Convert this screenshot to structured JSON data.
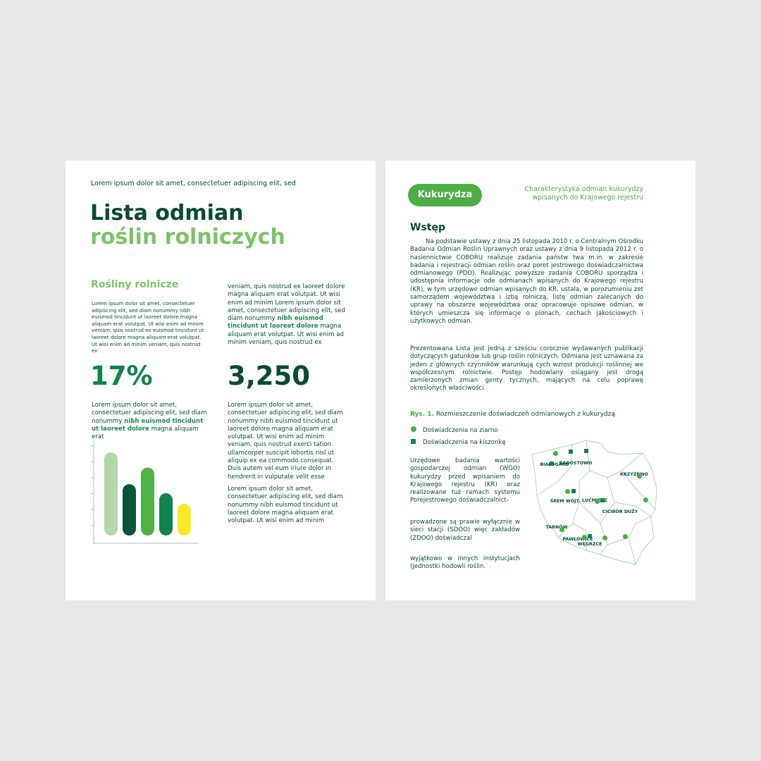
{
  "left_page": {
    "header": "Lorem ipsum dolor sit amet, consectetuer adipiscing elit, sed",
    "title_line1": "Lista odmian",
    "title_line2": "roślin rolniczych",
    "section_title": "Rośliny rolnicze",
    "small_text": "Lorem ipsum dolor sit amet, consectetuer adipiscing elit, sed diam nonummy nibh euismod tincidunt ut laoreet dolore magna aliquam erat volutpat. Ut wisi enim ad minim veniam, quis nostrud ex euismod tincidunt ut laoreet dolore magna aliquam erat volutpat. Ut wisi enim ad minim veniam, quis nostrud ex",
    "col2_top_a": "veniam, quis nostrud ex laoreet dolore magna aliquam erat volutpat. Ut wisi enim ad minim Lorem ipsum dolor sit amet, consectetuer adipiscing elit, sed diam nonummy ",
    "col2_top_hl": "nibh euismod tincidunt ut laoreet dolore",
    "col2_top_b": " magna aliquam erat volutpat. Ut wisi enim ad minim veniam, quis nostrud ex",
    "stat1": "17%",
    "stat2": "3,250",
    "stat1_text_a": "Lorem ipsum dolor sit amet, consectetuer adipiscing elit, sed diam nonummy ",
    "stat1_text_hl": "nibh euismod tincidunt ut laoreet dolore",
    "stat1_text_b": " magna aliquam erat",
    "col2_para1": "Lorem ipsum dolor sit amet, consectetuer adipiscing elit, sed diam nonummy nibh euismod tincidunt ut laoreet dolore magna aliquam erat volutpat. Ut wisi enim ad minim veniam, quis nostrud exerci tation ullamcorper suscipit lobortis nisl ut aliquip ex ea commodo consequat. Duis autem vel eum iriure dolor in hendrerit in vulputate velit esse",
    "col2_para2": "Lorem ipsum dolor sit amet, consectetuer adipiscing elit, sed diam nonummy nibh euismod tincidunt ut laoreet dolore magna aliquam erat volutpat. Ut wisi enim ad minim"
  },
  "chart_data": {
    "type": "bar",
    "values": [
      5.5,
      3.4,
      4.5,
      2.8,
      2.1
    ],
    "colors": [
      "#b3d6ab",
      "#06553a",
      "#52b04a",
      "#11834f",
      "#fde92c"
    ],
    "ylim": [
      0,
      6.3
    ],
    "grid": false
  },
  "right_page": {
    "badge": "Kukurydza",
    "subtitle_line1": "Charakterystyka odmian kukurydzy",
    "subtitle_line2": "wpisanych do Krajowego rejestru",
    "section_title": "Wstęp",
    "intro": "Na podstawie ustawy z dnia 25 listopada 2010 r. o Centralnym Ośrodku Badania Odmian Roślin Uprawnych oraz ustawy z dnia 9 listopada 2012 r. o nasiennictwie COBORU realizuje zadania państw twa m.in. w zakresie badania i rejestracji odmian roślin oraz poret jestrowego doświadczalnictwa odmianowego (PDO). Realizując powyższe zadania COBORU sporządza i udostępnia informacje ode odmianach wpisanych do Krajowego rejestru (KR), w tym urzędowe odmian wpisanych do KR, ustala, w porozumieniu zet samorządem województwa i izbą rolniczą, listę odmian zalecanych do uprawy na obszarze województwa oraz opracowuje opisowe odmian, w których umieszcza się informacje o plonach, cechach jakościowych i użytkowych odmian.",
    "intro2": "Prezentowana Lista jest jedną z sześciu corocznie wydawanych publikacji dotyczących gatunków lub grup roślin rolniczych. Odmiana jest uznawana za jeden z głównych czynników warunkują cych wzrost produkcji roślinnej we współczesnym rolnictwie. Postęp hodowlany osiągany jest drogą zamierzonych zmian genty tycznych, mających na celu poprawę określonych właściwości.",
    "figure_label": "Rys. 1.",
    "figure_caption": "Rozmieszczenie doświadczeń odmianowych z kukurydzą",
    "legend": [
      {
        "label": "Doświadczenia na ziarno",
        "marker": "circle"
      },
      {
        "label": "Doświadczenia na kiszonkę",
        "marker": "square"
      }
    ],
    "para_a": "Urzędowe badania wartości gospodarczej odmian (WGO) kukurydzy przed wpisaniem do Krajowego rejestru (KR) oraz realizowane tuż ramach systemu Porejestrowego doświadczalnict-",
    "para_b": "prowadzone są prawie wyłącznie w sieci stacji (SDOO) więc zakładów (ZDOO) doświadczal",
    "para_c": "wyjątkowo w innych instytucjach (jednostki hodowli roślin.",
    "map_cities": [
      "BIAŁOGARD",
      "RADOSTOWO",
      "KRZYŻEWO",
      "ŚREM WÓJT.",
      "LUĆMIERZ",
      "CICIBÓR DUŻY",
      "TARNÓW",
      "PAWŁOWICE",
      "WĘGRZCE"
    ]
  },
  "colors": {
    "dark_green": "#0b4a32",
    "light_green": "#7cc46a",
    "accent": "#4cae45",
    "square": "#11834f"
  }
}
